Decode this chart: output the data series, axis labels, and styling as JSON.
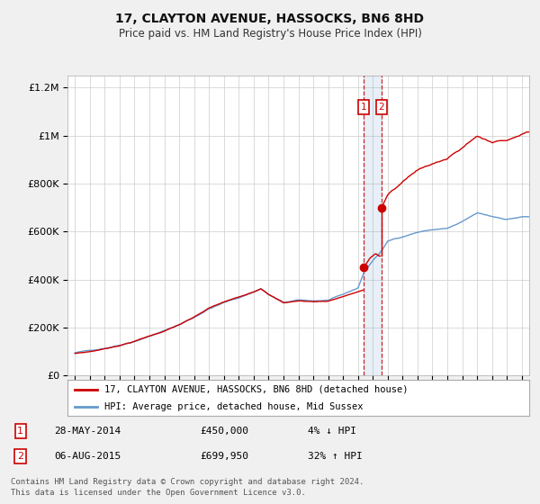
{
  "title": "17, CLAYTON AVENUE, HASSOCKS, BN6 8HD",
  "subtitle": "Price paid vs. HM Land Registry's House Price Index (HPI)",
  "legend_line1": "17, CLAYTON AVENUE, HASSOCKS, BN6 8HD (detached house)",
  "legend_line2": "HPI: Average price, detached house, Mid Sussex",
  "transaction1_date": "28-MAY-2014",
  "transaction1_price": 450000,
  "transaction1_label": "4% ↓ HPI",
  "transaction2_date": "06-AUG-2015",
  "transaction2_price": 699950,
  "transaction2_label": "32% ↑ HPI",
  "t1_x": 2014.4,
  "t2_x": 2015.58,
  "footnote_line1": "Contains HM Land Registry data © Crown copyright and database right 2024.",
  "footnote_line2": "This data is licensed under the Open Government Licence v3.0.",
  "red_color": "#cc0000",
  "blue_color": "#6699cc",
  "background_color": "#f0f0f0",
  "plot_bg_color": "#ffffff",
  "grid_color": "#cccccc",
  "ylim": [
    0,
    1250000
  ],
  "xlim": [
    1994.5,
    2025.5
  ]
}
